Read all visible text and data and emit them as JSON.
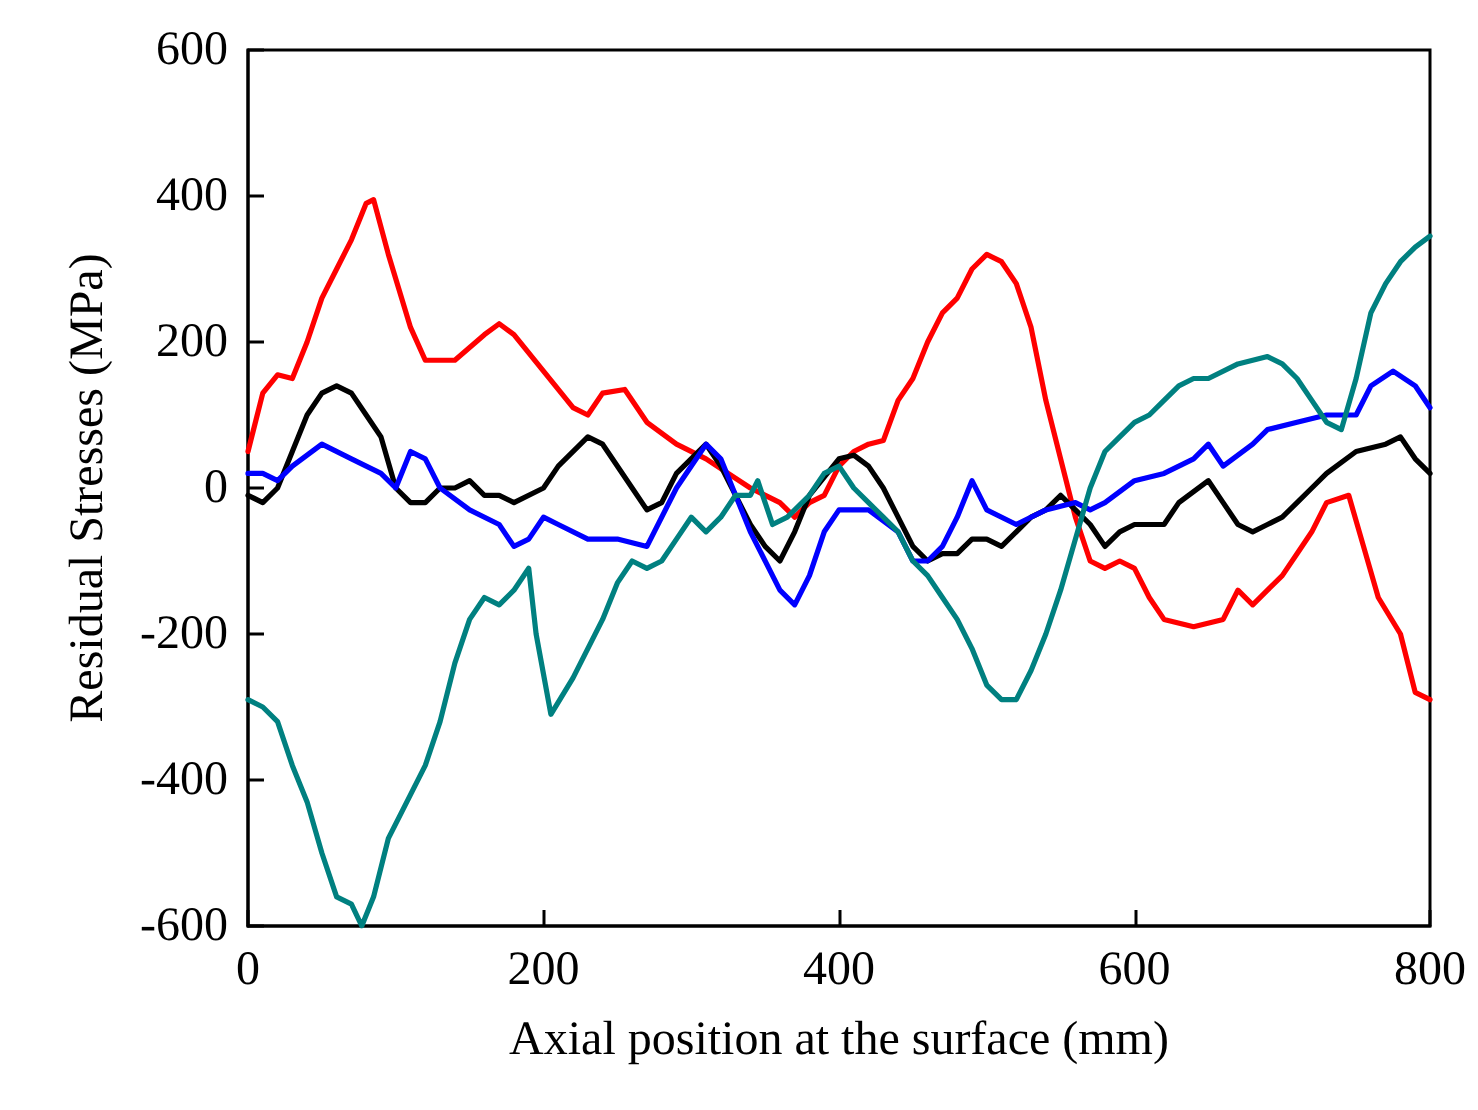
{
  "chart_data": {
    "type": "line",
    "xlabel": "Axial position at the surface (mm)",
    "ylabel": "Residual Stresses (MPa)",
    "xlim": [
      0,
      800
    ],
    "xticks": [
      0,
      200,
      400,
      600,
      800
    ],
    "ylim": [
      -600,
      600
    ],
    "yticks": [
      -600,
      -400,
      -200,
      0,
      200,
      400,
      600
    ],
    "grid": false,
    "marker": "none",
    "line_style": "solid",
    "series": [
      {
        "color": "#ff0000",
        "x": [
          0,
          10,
          20,
          30,
          40,
          50,
          60,
          70,
          80,
          85,
          95,
          110,
          120,
          140,
          160,
          170,
          180,
          200,
          220,
          230,
          240,
          255,
          270,
          290,
          310,
          340,
          360,
          370,
          380,
          390,
          400,
          410,
          420,
          430,
          440,
          450,
          460,
          470,
          480,
          490,
          500,
          510,
          520,
          530,
          540,
          550,
          560,
          570,
          580,
          590,
          600,
          610,
          620,
          640,
          660,
          670,
          680,
          690,
          700,
          710,
          720,
          730,
          745,
          755,
          765,
          780,
          790,
          800
        ],
        "values": [
          50,
          130,
          155,
          150,
          200,
          260,
          300,
          340,
          390,
          395,
          320,
          220,
          175,
          175,
          210,
          225,
          210,
          160,
          110,
          100,
          130,
          135,
          90,
          60,
          40,
          0,
          -20,
          -40,
          -20,
          -10,
          30,
          50,
          60,
          65,
          120,
          150,
          200,
          240,
          260,
          300,
          320,
          310,
          280,
          220,
          120,
          40,
          -40,
          -100,
          -110,
          -100,
          -110,
          -150,
          -180,
          -190,
          -180,
          -140,
          -160,
          -140,
          -120,
          -90,
          -60,
          -20,
          -10,
          -80,
          -150,
          -200,
          -280,
          -290
        ]
      },
      {
        "color": "#000000",
        "x": [
          0,
          10,
          20,
          30,
          40,
          50,
          60,
          70,
          80,
          90,
          100,
          110,
          120,
          130,
          140,
          150,
          160,
          170,
          180,
          200,
          210,
          230,
          240,
          260,
          270,
          280,
          290,
          310,
          320,
          340,
          350,
          360,
          370,
          380,
          400,
          410,
          420,
          430,
          440,
          450,
          460,
          470,
          480,
          490,
          500,
          510,
          520,
          530,
          540,
          550,
          560,
          570,
          580,
          590,
          600,
          620,
          630,
          650,
          660,
          670,
          680,
          690,
          700,
          710,
          720,
          730,
          750,
          770,
          780,
          790,
          800
        ],
        "values": [
          -10,
          -20,
          0,
          50,
          100,
          130,
          140,
          130,
          100,
          70,
          0,
          -20,
          -20,
          0,
          0,
          10,
          -10,
          -10,
          -20,
          0,
          30,
          70,
          60,
          0,
          -30,
          -20,
          20,
          60,
          30,
          -50,
          -80,
          -100,
          -60,
          -10,
          40,
          45,
          30,
          0,
          -40,
          -80,
          -100,
          -90,
          -90,
          -70,
          -70,
          -80,
          -60,
          -40,
          -30,
          -10,
          -30,
          -50,
          -80,
          -60,
          -50,
          -50,
          -20,
          10,
          -20,
          -50,
          -60,
          -50,
          -40,
          -20,
          0,
          20,
          50,
          60,
          70,
          40,
          20
        ]
      },
      {
        "color": "#0000ff",
        "x": [
          0,
          10,
          20,
          30,
          50,
          70,
          90,
          100,
          110,
          120,
          130,
          150,
          170,
          180,
          190,
          200,
          210,
          230,
          250,
          270,
          290,
          310,
          320,
          340,
          360,
          370,
          380,
          390,
          400,
          420,
          440,
          450,
          460,
          470,
          480,
          490,
          500,
          520,
          540,
          560,
          570,
          580,
          600,
          620,
          640,
          650,
          660,
          680,
          690,
          710,
          730,
          750,
          760,
          775,
          790,
          800
        ],
        "values": [
          20,
          20,
          10,
          30,
          60,
          40,
          20,
          0,
          50,
          40,
          0,
          -30,
          -50,
          -80,
          -70,
          -40,
          -50,
          -70,
          -70,
          -80,
          0,
          60,
          40,
          -60,
          -140,
          -160,
          -120,
          -60,
          -30,
          -30,
          -60,
          -100,
          -100,
          -80,
          -40,
          10,
          -30,
          -50,
          -30,
          -20,
          -30,
          -20,
          10,
          20,
          40,
          60,
          30,
          60,
          80,
          90,
          100,
          100,
          140,
          160,
          140,
          110
        ]
      },
      {
        "color": "#008080",
        "x": [
          0,
          10,
          20,
          30,
          40,
          50,
          60,
          70,
          77,
          85,
          95,
          110,
          120,
          130,
          140,
          150,
          160,
          170,
          180,
          190,
          195,
          205,
          220,
          240,
          250,
          260,
          270,
          280,
          290,
          300,
          310,
          320,
          330,
          340,
          345,
          355,
          365,
          380,
          390,
          400,
          410,
          420,
          430,
          440,
          450,
          460,
          470,
          480,
          490,
          500,
          510,
          520,
          530,
          540,
          550,
          560,
          570,
          580,
          590,
          600,
          610,
          620,
          630,
          640,
          650,
          670,
          690,
          700,
          710,
          720,
          730,
          740,
          750,
          760,
          770,
          780,
          790,
          800
        ],
        "values": [
          -290,
          -300,
          -320,
          -380,
          -430,
          -500,
          -560,
          -570,
          -600,
          -560,
          -480,
          -420,
          -380,
          -320,
          -240,
          -180,
          -150,
          -160,
          -140,
          -110,
          -200,
          -310,
          -260,
          -180,
          -130,
          -100,
          -110,
          -100,
          -70,
          -40,
          -60,
          -40,
          -10,
          -10,
          10,
          -50,
          -40,
          -10,
          20,
          30,
          0,
          -20,
          -40,
          -60,
          -100,
          -120,
          -150,
          -180,
          -220,
          -270,
          -290,
          -290,
          -250,
          -200,
          -140,
          -70,
          0,
          50,
          70,
          90,
          100,
          120,
          140,
          150,
          150,
          170,
          180,
          170,
          150,
          120,
          90,
          80,
          150,
          240,
          280,
          310,
          330,
          345
        ]
      }
    ]
  }
}
